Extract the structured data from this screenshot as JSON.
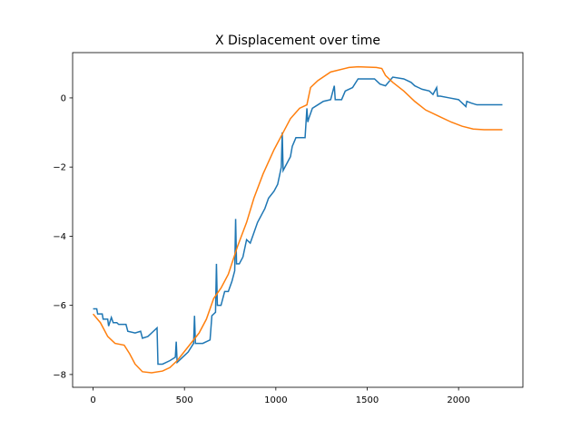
{
  "chart_data": {
    "type": "line",
    "title": "X Displacement over time",
    "xlim": [
      -112,
      2352
    ],
    "ylim": [
      -8.37,
      1.31
    ],
    "xticks": [
      0,
      500,
      1000,
      1500,
      2000
    ],
    "yticks": [
      {
        "value": -8,
        "label": "−8"
      },
      {
        "value": -6,
        "label": "−6"
      },
      {
        "value": -4,
        "label": "−4"
      },
      {
        "value": -2,
        "label": "−2"
      },
      0
    ],
    "series": [
      {
        "color": "#1f77b4",
        "x": [
          0,
          20,
          25,
          50,
          55,
          80,
          85,
          100,
          110,
          130,
          140,
          180,
          190,
          230,
          260,
          270,
          300,
          330,
          350,
          355,
          380,
          420,
          450,
          455,
          460,
          490,
          520,
          550,
          555,
          560,
          600,
          640,
          650,
          670,
          675,
          680,
          700,
          720,
          740,
          760,
          775,
          780,
          785,
          800,
          820,
          840,
          860,
          880,
          900,
          920,
          940,
          960,
          990,
          1010,
          1030,
          1035,
          1040,
          1060,
          1080,
          1090,
          1110,
          1160,
          1170,
          1175,
          1180,
          1200,
          1230,
          1260,
          1300,
          1320,
          1325,
          1360,
          1380,
          1420,
          1450,
          1540,
          1570,
          1600,
          1640,
          1700,
          1740,
          1760,
          1780,
          1800,
          1840,
          1860,
          1880,
          1885,
          1900,
          1950,
          2000,
          2040,
          2045,
          2070,
          2100,
          2240
        ],
        "values": [
          -6.1,
          -6.1,
          -6.25,
          -6.25,
          -6.4,
          -6.4,
          -6.6,
          -6.35,
          -6.5,
          -6.5,
          -6.55,
          -6.55,
          -6.75,
          -6.8,
          -6.75,
          -6.95,
          -6.9,
          -6.75,
          -6.65,
          -7.7,
          -7.7,
          -7.6,
          -7.5,
          -7.05,
          -7.65,
          -7.5,
          -7.35,
          -7.1,
          -6.3,
          -7.1,
          -7.1,
          -7.0,
          -6.3,
          -6.2,
          -4.8,
          -6.0,
          -6.0,
          -5.6,
          -5.6,
          -5.3,
          -5.0,
          -3.5,
          -4.8,
          -4.8,
          -4.6,
          -4.1,
          -4.2,
          -3.9,
          -3.6,
          -3.4,
          -3.2,
          -2.9,
          -2.7,
          -2.5,
          -2.0,
          -1.0,
          -2.1,
          -1.9,
          -1.7,
          -1.4,
          -1.15,
          -1.15,
          -0.3,
          -0.7,
          -0.6,
          -0.3,
          -0.2,
          -0.1,
          -0.05,
          0.35,
          -0.05,
          -0.05,
          0.2,
          0.3,
          0.55,
          0.55,
          0.4,
          0.35,
          0.6,
          0.55,
          0.45,
          0.35,
          0.3,
          0.25,
          0.2,
          0.1,
          0.3,
          0.05,
          0.05,
          0,
          -0.05,
          -0.25,
          -0.1,
          -0.15,
          -0.2,
          -0.2
        ]
      },
      {
        "color": "#ff7f0e",
        "x": [
          0,
          40,
          80,
          120,
          170,
          200,
          230,
          270,
          320,
          380,
          420,
          460,
          520,
          580,
          620,
          660,
          700,
          740,
          790,
          840,
          880,
          930,
          990,
          1040,
          1080,
          1130,
          1170,
          1190,
          1230,
          1300,
          1400,
          1450,
          1550,
          1580,
          1600,
          1640,
          1700,
          1760,
          1820,
          1900,
          1960,
          2020,
          2080,
          2140,
          2240
        ],
        "values": [
          -6.25,
          -6.5,
          -6.9,
          -7.1,
          -7.15,
          -7.4,
          -7.7,
          -7.92,
          -7.95,
          -7.9,
          -7.8,
          -7.6,
          -7.2,
          -6.8,
          -6.4,
          -5.8,
          -5.5,
          -5.1,
          -4.3,
          -3.6,
          -2.9,
          -2.2,
          -1.5,
          -1.0,
          -0.6,
          -0.3,
          -0.2,
          0.3,
          0.5,
          0.75,
          0.88,
          0.9,
          0.88,
          0.85,
          0.65,
          0.45,
          0.2,
          -0.1,
          -0.35,
          -0.55,
          -0.7,
          -0.82,
          -0.9,
          -0.92,
          -0.92
        ]
      }
    ]
  }
}
